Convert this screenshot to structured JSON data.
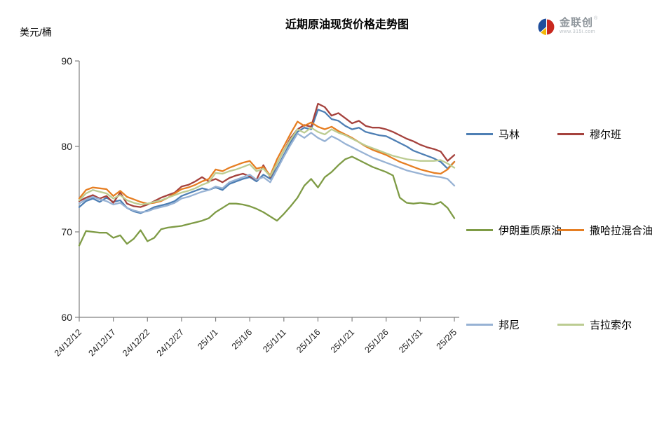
{
  "header": {
    "title": "近期原油现货价格走势图",
    "unit": "美元/桶"
  },
  "logo": {
    "brand": "金联创",
    "reg": "®",
    "url": "www.315i.com"
  },
  "chart_data": {
    "type": "line",
    "title": "近期原油现货价格走势图",
    "ylabel": "美元/桶",
    "ylim": [
      60,
      90
    ],
    "yticks": [
      60,
      70,
      80,
      90
    ],
    "grid": false,
    "legend_position": "right",
    "axis_color": "#808080",
    "tick_label_color": "#1f1f1f",
    "x_tick_labels": [
      "24/12/12",
      "24/12/17",
      "24/12/22",
      "24/12/27",
      "25/1/1",
      "25/1/6",
      "25/1/11",
      "25/1/16",
      "25/1/21",
      "25/1/26",
      "25/1/31",
      "25/2/5"
    ],
    "x": [
      "24/12/12",
      "24/12/13",
      "24/12/14",
      "24/12/15",
      "24/12/16",
      "24/12/17",
      "24/12/18",
      "24/12/19",
      "24/12/20",
      "24/12/21",
      "24/12/22",
      "24/12/23",
      "24/12/24",
      "24/12/25",
      "24/12/26",
      "24/12/27",
      "24/12/28",
      "24/12/29",
      "24/12/30",
      "24/12/31",
      "25/1/1",
      "25/1/2",
      "25/1/3",
      "25/1/4",
      "25/1/5",
      "25/1/6",
      "25/1/7",
      "25/1/8",
      "25/1/9",
      "25/1/10",
      "25/1/11",
      "25/1/12",
      "25/1/13",
      "25/1/14",
      "25/1/15",
      "25/1/16",
      "25/1/17",
      "25/1/18",
      "25/1/19",
      "25/1/20",
      "25/1/21",
      "25/1/22",
      "25/1/23",
      "25/1/24",
      "25/1/25",
      "25/1/26",
      "25/1/27",
      "25/1/28",
      "25/1/29",
      "25/1/30",
      "25/1/31",
      "25/2/1",
      "25/2/2",
      "25/2/3",
      "25/2/4",
      "25/2/5"
    ],
    "series": [
      {
        "name": "马林",
        "color": "#4E7FB4",
        "values": [
          72.9,
          73.6,
          73.9,
          73.5,
          74.0,
          73.5,
          73.7,
          72.8,
          72.4,
          72.2,
          72.5,
          72.9,
          73.1,
          73.3,
          73.6,
          74.2,
          74.5,
          74.8,
          75.1,
          74.9,
          75.2,
          74.9,
          75.6,
          75.9,
          76.2,
          76.4,
          75.9,
          76.7,
          76.2,
          77.5,
          79.0,
          80.5,
          81.7,
          82.2,
          82.0,
          84.3,
          84.0,
          83.2,
          83.0,
          82.4,
          82.0,
          82.2,
          81.7,
          81.5,
          81.3,
          81.2,
          80.8,
          80.4,
          80.0,
          79.5,
          79.2,
          78.9,
          78.6,
          78.2,
          77.4,
          78.2
        ]
      },
      {
        "name": "穆尔班",
        "color": "#A5423D",
        "values": [
          73.6,
          74.0,
          74.3,
          73.9,
          74.2,
          73.4,
          74.6,
          73.3,
          73.0,
          72.9,
          73.2,
          73.6,
          74.0,
          74.3,
          74.6,
          75.3,
          75.5,
          75.9,
          76.4,
          75.9,
          76.2,
          75.8,
          76.3,
          76.6,
          76.8,
          76.5,
          76.1,
          77.8,
          76.4,
          78.0,
          79.5,
          81.0,
          82.0,
          82.5,
          82.3,
          85.0,
          84.6,
          83.6,
          83.9,
          83.3,
          82.7,
          83.0,
          82.4,
          82.2,
          82.2,
          82.0,
          81.7,
          81.3,
          80.9,
          80.6,
          80.2,
          79.9,
          79.7,
          79.4,
          78.3,
          79.0
        ]
      },
      {
        "name": "伊朗重质原油",
        "color": "#7E9B45",
        "values": [
          68.4,
          70.1,
          70.0,
          69.9,
          69.9,
          69.3,
          69.6,
          68.6,
          69.2,
          70.2,
          68.9,
          69.3,
          70.3,
          70.5,
          70.6,
          70.7,
          70.9,
          71.1,
          71.3,
          71.6,
          72.3,
          72.8,
          73.3,
          73.3,
          73.2,
          73.0,
          72.7,
          72.3,
          71.8,
          71.3,
          72.1,
          73.0,
          74.0,
          75.4,
          76.2,
          75.2,
          76.4,
          77.0,
          77.8,
          78.5,
          78.8,
          78.4,
          78.0,
          77.6,
          77.3,
          77.0,
          76.6,
          74.0,
          73.4,
          73.3,
          73.4,
          73.3,
          73.2,
          73.5,
          72.8,
          71.6
        ]
      },
      {
        "name": "撒哈拉混合油",
        "color": "#E67E22",
        "values": [
          73.9,
          74.9,
          75.2,
          75.1,
          75.0,
          74.2,
          74.8,
          74.1,
          73.8,
          73.5,
          73.3,
          73.4,
          73.6,
          74.0,
          74.5,
          75.0,
          75.2,
          75.5,
          75.9,
          76.2,
          77.3,
          77.1,
          77.5,
          77.8,
          78.1,
          78.3,
          77.4,
          77.6,
          76.6,
          78.5,
          80.0,
          81.5,
          82.9,
          82.4,
          82.8,
          82.3,
          82.0,
          82.3,
          81.8,
          81.4,
          81.0,
          80.5,
          80.0,
          79.6,
          79.3,
          79.0,
          78.6,
          78.2,
          77.9,
          77.6,
          77.3,
          77.1,
          76.9,
          76.8,
          77.3,
          78.2
        ]
      },
      {
        "name": "邦尼",
        "color": "#97B2D4",
        "values": [
          73.3,
          73.8,
          74.1,
          73.8,
          73.6,
          73.2,
          73.4,
          72.8,
          72.5,
          72.3,
          72.4,
          72.7,
          72.9,
          73.1,
          73.4,
          73.9,
          74.1,
          74.4,
          74.7,
          74.9,
          75.3,
          75.1,
          75.8,
          76.1,
          76.4,
          76.7,
          76.1,
          76.4,
          75.8,
          77.3,
          78.8,
          80.2,
          81.5,
          81.0,
          81.6,
          81.0,
          80.6,
          81.2,
          80.8,
          80.3,
          79.9,
          79.5,
          79.1,
          78.7,
          78.4,
          78.1,
          77.8,
          77.5,
          77.2,
          77.0,
          76.8,
          76.6,
          76.5,
          76.4,
          76.2,
          75.4
        ]
      },
      {
        "name": "吉拉索尔",
        "color": "#BCCC92",
        "values": [
          73.7,
          74.5,
          74.9,
          74.7,
          74.5,
          73.9,
          74.3,
          73.7,
          73.4,
          73.2,
          73.3,
          73.5,
          73.7,
          74.0,
          74.3,
          74.6,
          74.8,
          75.1,
          75.5,
          75.8,
          76.9,
          76.8,
          77.1,
          77.3,
          77.6,
          77.9,
          77.1,
          77.4,
          76.5,
          78.0,
          79.5,
          80.8,
          82.0,
          81.6,
          82.2,
          81.7,
          81.4,
          82.0,
          81.6,
          81.3,
          80.9,
          80.5,
          80.1,
          79.8,
          79.5,
          79.2,
          78.9,
          78.7,
          78.5,
          78.4,
          78.3,
          78.3,
          78.3,
          78.4,
          78.0,
          77.5
        ]
      }
    ]
  }
}
